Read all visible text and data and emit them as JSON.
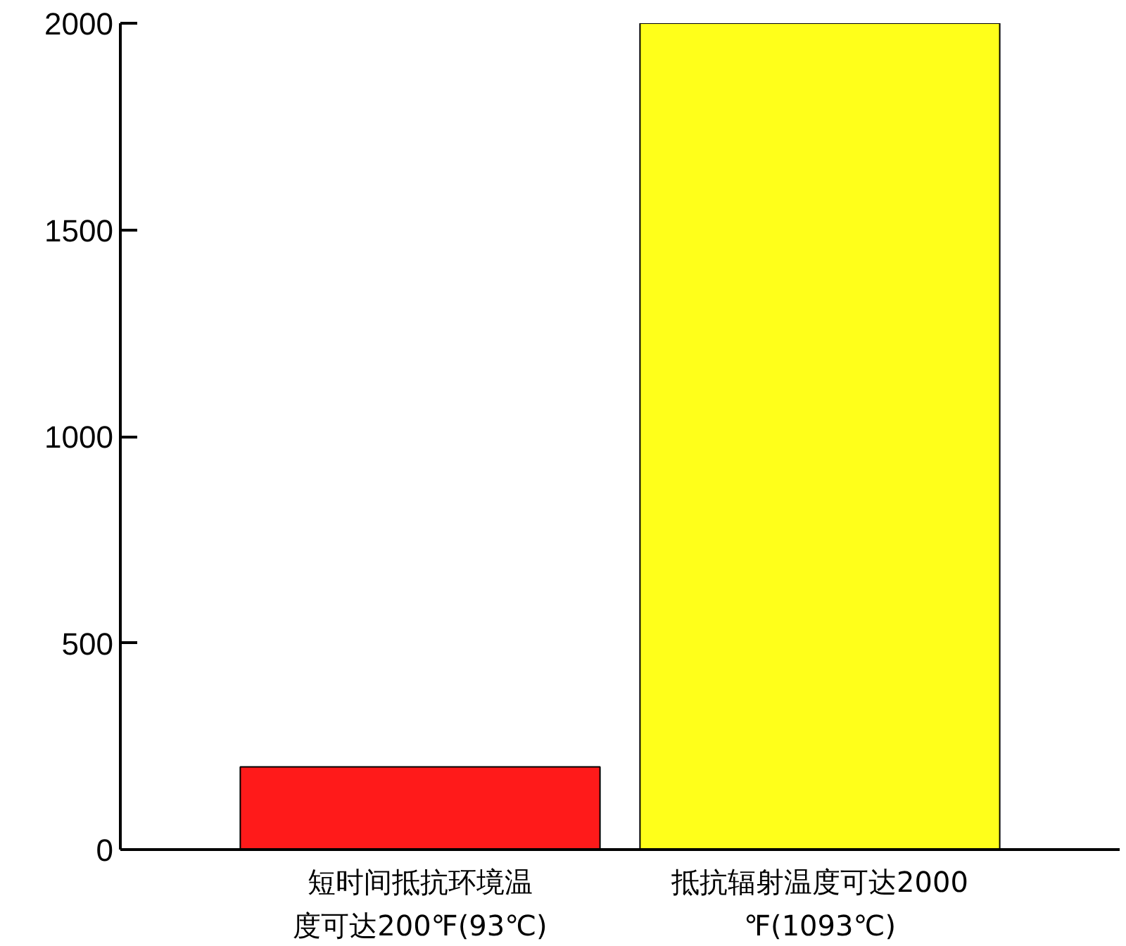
{
  "chart_data": {
    "type": "bar",
    "categories": [
      "短时间抵抗环境温度可达200℉(93℃)",
      "抵抗辐射温度可达2000℉(1093℃)"
    ],
    "values": [
      200,
      2000
    ],
    "colors": [
      "#ff1a1a",
      "#ffff1a"
    ],
    "ylim": [
      0,
      2000
    ],
    "yticks": [
      0,
      500,
      1000,
      1500,
      2000
    ],
    "grid": false
  }
}
